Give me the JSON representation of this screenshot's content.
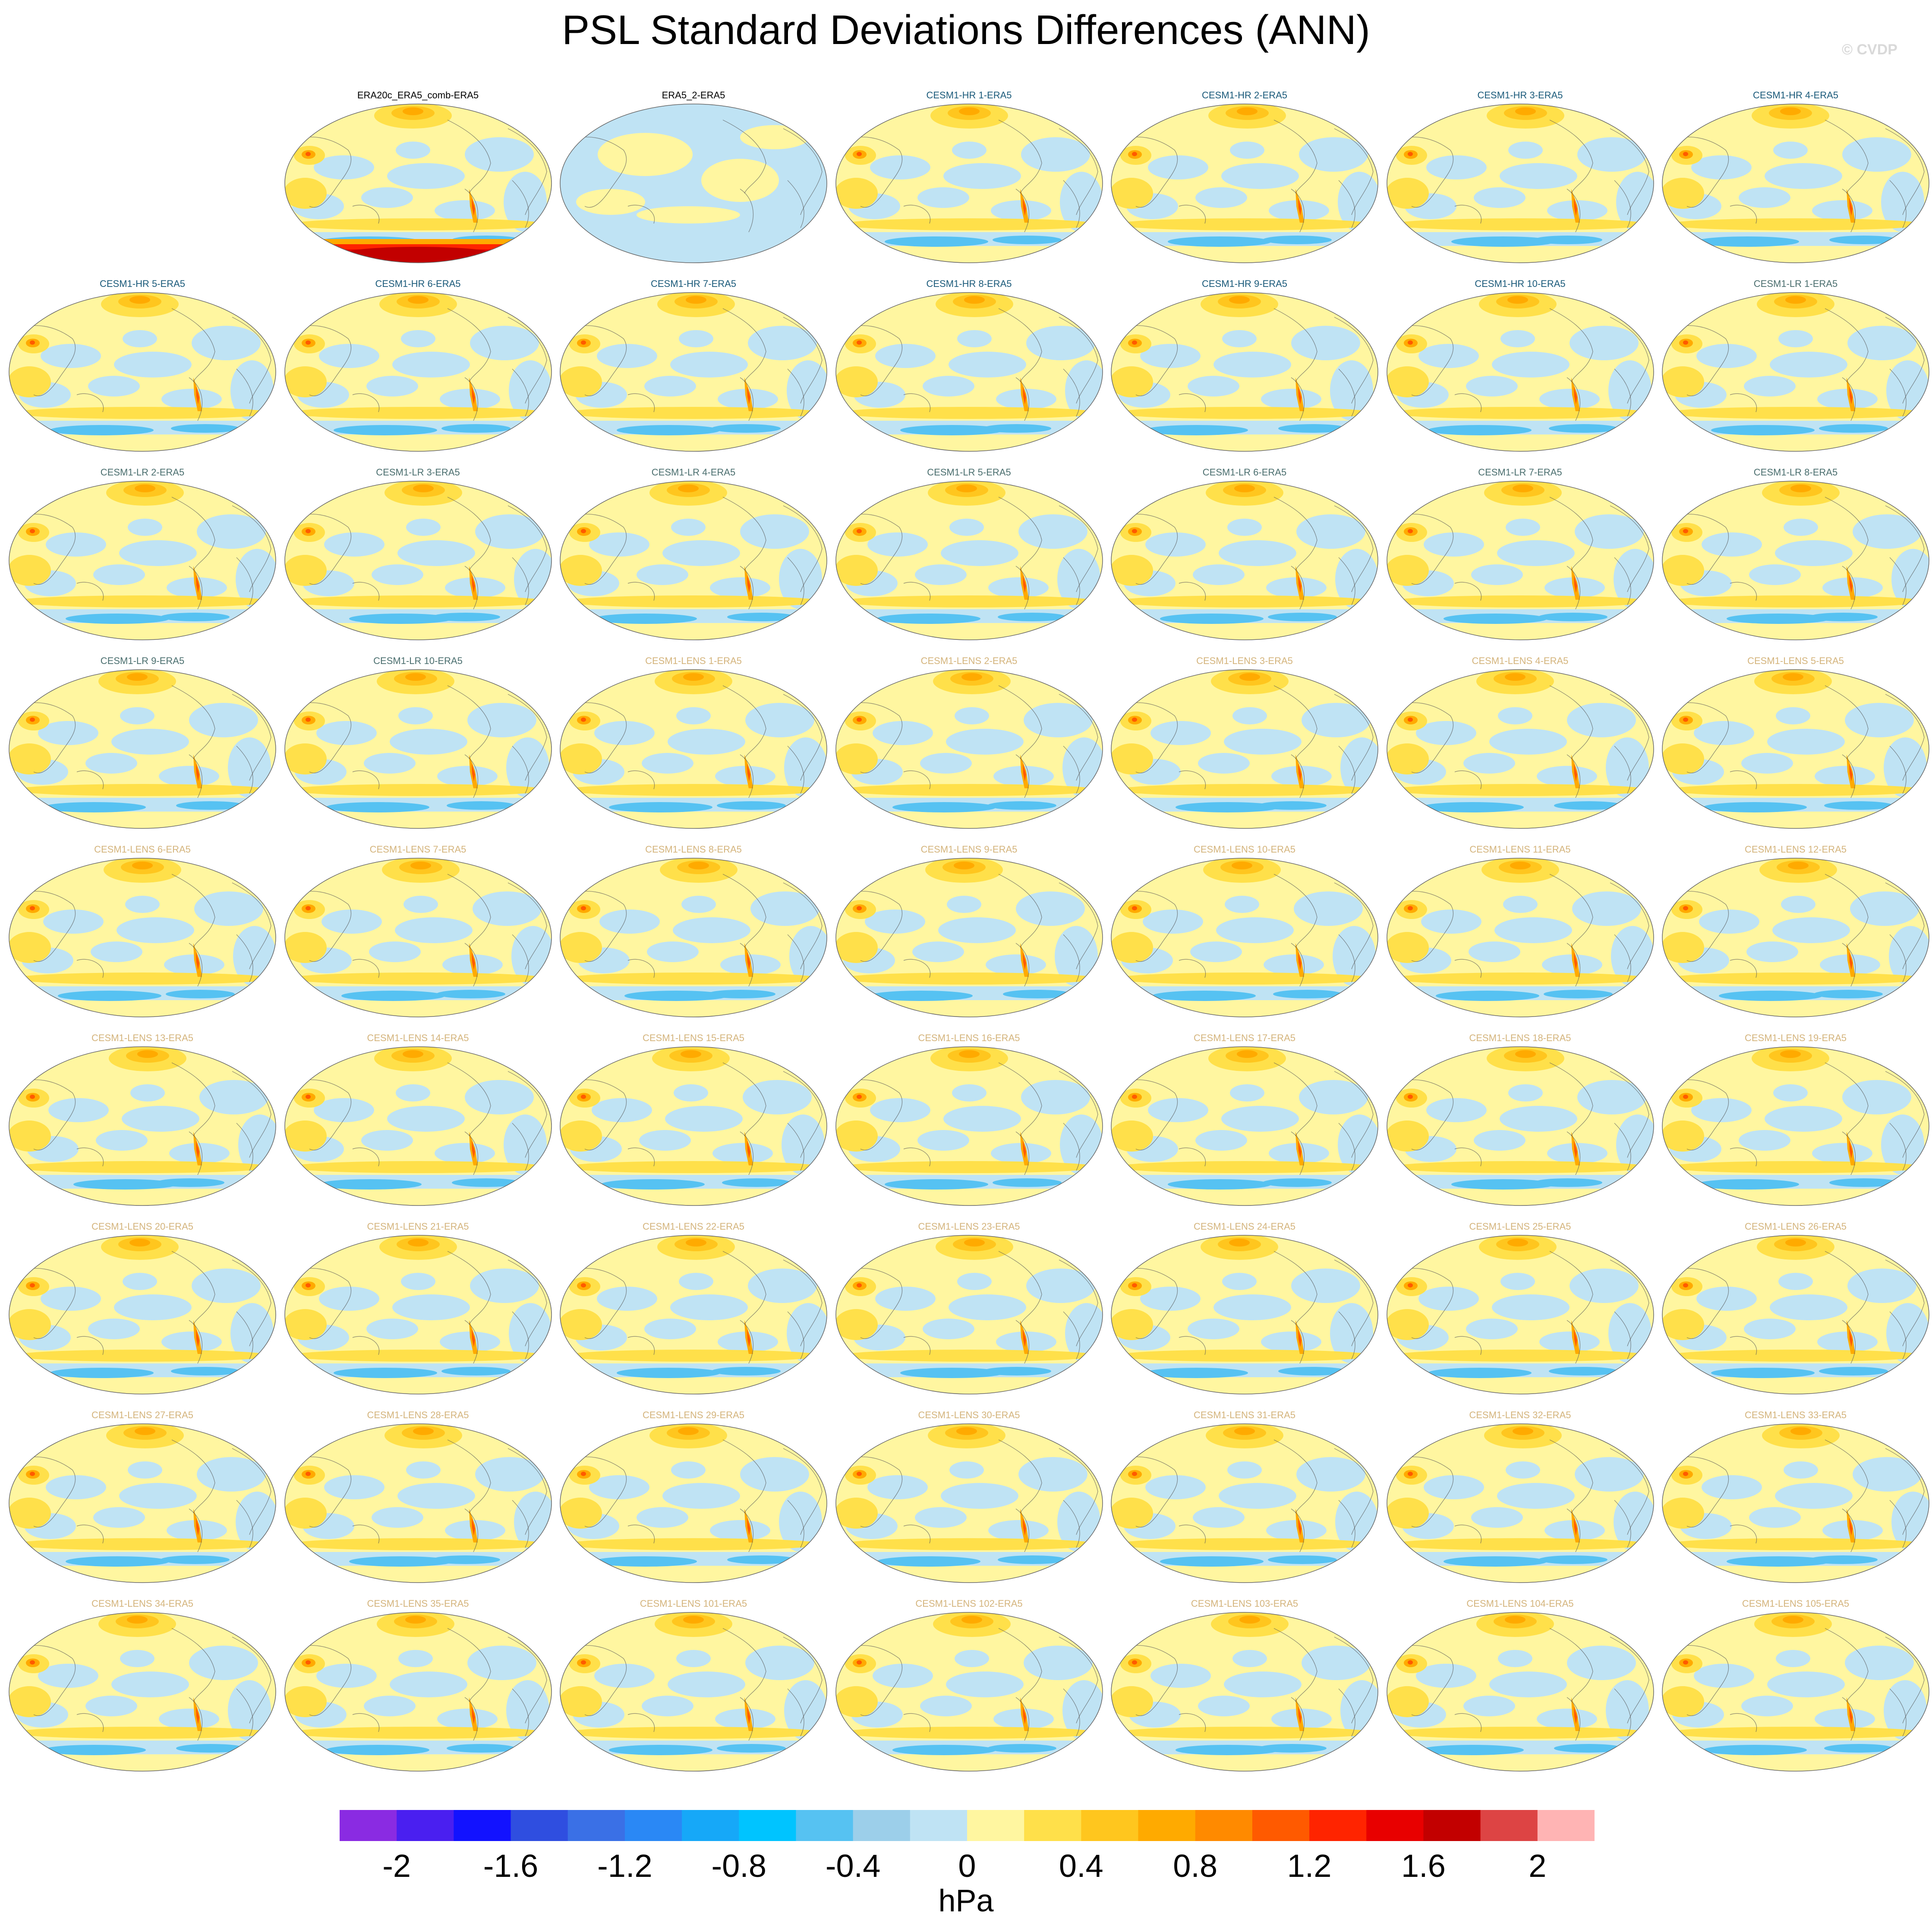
{
  "title": "PSL Standard Deviations Differences (ANN)",
  "copyright": "© CVDP",
  "units": "hPa",
  "colorbar": {
    "levels": [
      "-2",
      "-1.6",
      "-1.2",
      "-0.8",
      "-0.4",
      "0",
      "0.4",
      "0.8",
      "1.2",
      "1.6",
      "2"
    ],
    "colors": [
      "#8a2be2",
      "#4a1ff0",
      "#1212ff",
      "#2f4ee0",
      "#3a70e6",
      "#2a88f5",
      "#16a8f8",
      "#00c4ff",
      "#56c2f2",
      "#9ccfea",
      "#bfe3f4",
      "#fff6a0",
      "#ffe04a",
      "#ffc61e",
      "#ffaa00",
      "#ff8a00",
      "#ff5a00",
      "#ff2400",
      "#e80000",
      "#c20000",
      "#dd4444",
      "#ffb4b4"
    ]
  },
  "title_colors": {
    "obs": "#000000",
    "CESM1-HR": "#1a5a7a",
    "CESM1-LR": "#4a6e6e",
    "CESM1-LENS": "#d4b47c"
  },
  "icons": [
    "map-panel-icon"
  ],
  "panels": [
    {
      "row": 0,
      "col": 1,
      "title": "ERA20c_ERA5_comb-ERA5",
      "group": "obs"
    },
    {
      "row": 0,
      "col": 2,
      "title": "ERA5_2-ERA5",
      "group": "obs"
    },
    {
      "row": 0,
      "col": 3,
      "title": "CESM1-HR 1-ERA5",
      "group": "CESM1-HR"
    },
    {
      "row": 0,
      "col": 4,
      "title": "CESM1-HR 2-ERA5",
      "group": "CESM1-HR"
    },
    {
      "row": 0,
      "col": 5,
      "title": "CESM1-HR 3-ERA5",
      "group": "CESM1-HR"
    },
    {
      "row": 0,
      "col": 6,
      "title": "CESM1-HR 4-ERA5",
      "group": "CESM1-HR"
    },
    {
      "row": 1,
      "col": 0,
      "title": "CESM1-HR 5-ERA5",
      "group": "CESM1-HR"
    },
    {
      "row": 1,
      "col": 1,
      "title": "CESM1-HR 6-ERA5",
      "group": "CESM1-HR"
    },
    {
      "row": 1,
      "col": 2,
      "title": "CESM1-HR 7-ERA5",
      "group": "CESM1-HR"
    },
    {
      "row": 1,
      "col": 3,
      "title": "CESM1-HR 8-ERA5",
      "group": "CESM1-HR"
    },
    {
      "row": 1,
      "col": 4,
      "title": "CESM1-HR 9-ERA5",
      "group": "CESM1-HR"
    },
    {
      "row": 1,
      "col": 5,
      "title": "CESM1-HR 10-ERA5",
      "group": "CESM1-HR"
    },
    {
      "row": 1,
      "col": 6,
      "title": "CESM1-LR 1-ERA5",
      "group": "CESM1-LR"
    },
    {
      "row": 2,
      "col": 0,
      "title": "CESM1-LR 2-ERA5",
      "group": "CESM1-LR"
    },
    {
      "row": 2,
      "col": 1,
      "title": "CESM1-LR 3-ERA5",
      "group": "CESM1-LR"
    },
    {
      "row": 2,
      "col": 2,
      "title": "CESM1-LR 4-ERA5",
      "group": "CESM1-LR"
    },
    {
      "row": 2,
      "col": 3,
      "title": "CESM1-LR 5-ERA5",
      "group": "CESM1-LR"
    },
    {
      "row": 2,
      "col": 4,
      "title": "CESM1-LR 6-ERA5",
      "group": "CESM1-LR"
    },
    {
      "row": 2,
      "col": 5,
      "title": "CESM1-LR 7-ERA5",
      "group": "CESM1-LR"
    },
    {
      "row": 2,
      "col": 6,
      "title": "CESM1-LR 8-ERA5",
      "group": "CESM1-LR"
    },
    {
      "row": 3,
      "col": 0,
      "title": "CESM1-LR 9-ERA5",
      "group": "CESM1-LR"
    },
    {
      "row": 3,
      "col": 1,
      "title": "CESM1-LR 10-ERA5",
      "group": "CESM1-LR"
    },
    {
      "row": 3,
      "col": 2,
      "title": "CESM1-LENS 1-ERA5",
      "group": "CESM1-LENS"
    },
    {
      "row": 3,
      "col": 3,
      "title": "CESM1-LENS 2-ERA5",
      "group": "CESM1-LENS"
    },
    {
      "row": 3,
      "col": 4,
      "title": "CESM1-LENS 3-ERA5",
      "group": "CESM1-LENS"
    },
    {
      "row": 3,
      "col": 5,
      "title": "CESM1-LENS 4-ERA5",
      "group": "CESM1-LENS"
    },
    {
      "row": 3,
      "col": 6,
      "title": "CESM1-LENS 5-ERA5",
      "group": "CESM1-LENS"
    },
    {
      "row": 4,
      "col": 0,
      "title": "CESM1-LENS 6-ERA5",
      "group": "CESM1-LENS"
    },
    {
      "row": 4,
      "col": 1,
      "title": "CESM1-LENS 7-ERA5",
      "group": "CESM1-LENS"
    },
    {
      "row": 4,
      "col": 2,
      "title": "CESM1-LENS 8-ERA5",
      "group": "CESM1-LENS"
    },
    {
      "row": 4,
      "col": 3,
      "title": "CESM1-LENS 9-ERA5",
      "group": "CESM1-LENS"
    },
    {
      "row": 4,
      "col": 4,
      "title": "CESM1-LENS 10-ERA5",
      "group": "CESM1-LENS"
    },
    {
      "row": 4,
      "col": 5,
      "title": "CESM1-LENS 11-ERA5",
      "group": "CESM1-LENS"
    },
    {
      "row": 4,
      "col": 6,
      "title": "CESM1-LENS 12-ERA5",
      "group": "CESM1-LENS"
    },
    {
      "row": 5,
      "col": 0,
      "title": "CESM1-LENS 13-ERA5",
      "group": "CESM1-LENS"
    },
    {
      "row": 5,
      "col": 1,
      "title": "CESM1-LENS 14-ERA5",
      "group": "CESM1-LENS"
    },
    {
      "row": 5,
      "col": 2,
      "title": "CESM1-LENS 15-ERA5",
      "group": "CESM1-LENS"
    },
    {
      "row": 5,
      "col": 3,
      "title": "CESM1-LENS 16-ERA5",
      "group": "CESM1-LENS"
    },
    {
      "row": 5,
      "col": 4,
      "title": "CESM1-LENS 17-ERA5",
      "group": "CESM1-LENS"
    },
    {
      "row": 5,
      "col": 5,
      "title": "CESM1-LENS 18-ERA5",
      "group": "CESM1-LENS"
    },
    {
      "row": 5,
      "col": 6,
      "title": "CESM1-LENS 19-ERA5",
      "group": "CESM1-LENS"
    },
    {
      "row": 6,
      "col": 0,
      "title": "CESM1-LENS 20-ERA5",
      "group": "CESM1-LENS"
    },
    {
      "row": 6,
      "col": 1,
      "title": "CESM1-LENS 21-ERA5",
      "group": "CESM1-LENS"
    },
    {
      "row": 6,
      "col": 2,
      "title": "CESM1-LENS 22-ERA5",
      "group": "CESM1-LENS"
    },
    {
      "row": 6,
      "col": 3,
      "title": "CESM1-LENS 23-ERA5",
      "group": "CESM1-LENS"
    },
    {
      "row": 6,
      "col": 4,
      "title": "CESM1-LENS 24-ERA5",
      "group": "CESM1-LENS"
    },
    {
      "row": 6,
      "col": 5,
      "title": "CESM1-LENS 25-ERA5",
      "group": "CESM1-LENS"
    },
    {
      "row": 6,
      "col": 6,
      "title": "CESM1-LENS 26-ERA5",
      "group": "CESM1-LENS"
    },
    {
      "row": 7,
      "col": 0,
      "title": "CESM1-LENS 27-ERA5",
      "group": "CESM1-LENS"
    },
    {
      "row": 7,
      "col": 1,
      "title": "CESM1-LENS 28-ERA5",
      "group": "CESM1-LENS"
    },
    {
      "row": 7,
      "col": 2,
      "title": "CESM1-LENS 29-ERA5",
      "group": "CESM1-LENS"
    },
    {
      "row": 7,
      "col": 3,
      "title": "CESM1-LENS 30-ERA5",
      "group": "CESM1-LENS"
    },
    {
      "row": 7,
      "col": 4,
      "title": "CESM1-LENS 31-ERA5",
      "group": "CESM1-LENS"
    },
    {
      "row": 7,
      "col": 5,
      "title": "CESM1-LENS 32-ERA5",
      "group": "CESM1-LENS"
    },
    {
      "row": 7,
      "col": 6,
      "title": "CESM1-LENS 33-ERA5",
      "group": "CESM1-LENS"
    },
    {
      "row": 8,
      "col": 0,
      "title": "CESM1-LENS 34-ERA5",
      "group": "CESM1-LENS"
    },
    {
      "row": 8,
      "col": 1,
      "title": "CESM1-LENS 35-ERA5",
      "group": "CESM1-LENS"
    },
    {
      "row": 8,
      "col": 2,
      "title": "CESM1-LENS 101-ERA5",
      "group": "CESM1-LENS"
    },
    {
      "row": 8,
      "col": 3,
      "title": "CESM1-LENS 102-ERA5",
      "group": "CESM1-LENS"
    },
    {
      "row": 8,
      "col": 4,
      "title": "CESM1-LENS 103-ERA5",
      "group": "CESM1-LENS"
    },
    {
      "row": 8,
      "col": 5,
      "title": "CESM1-LENS 104-ERA5",
      "group": "CESM1-LENS"
    },
    {
      "row": 8,
      "col": 6,
      "title": "CESM1-LENS 105-ERA5",
      "group": "CESM1-LENS"
    }
  ]
}
